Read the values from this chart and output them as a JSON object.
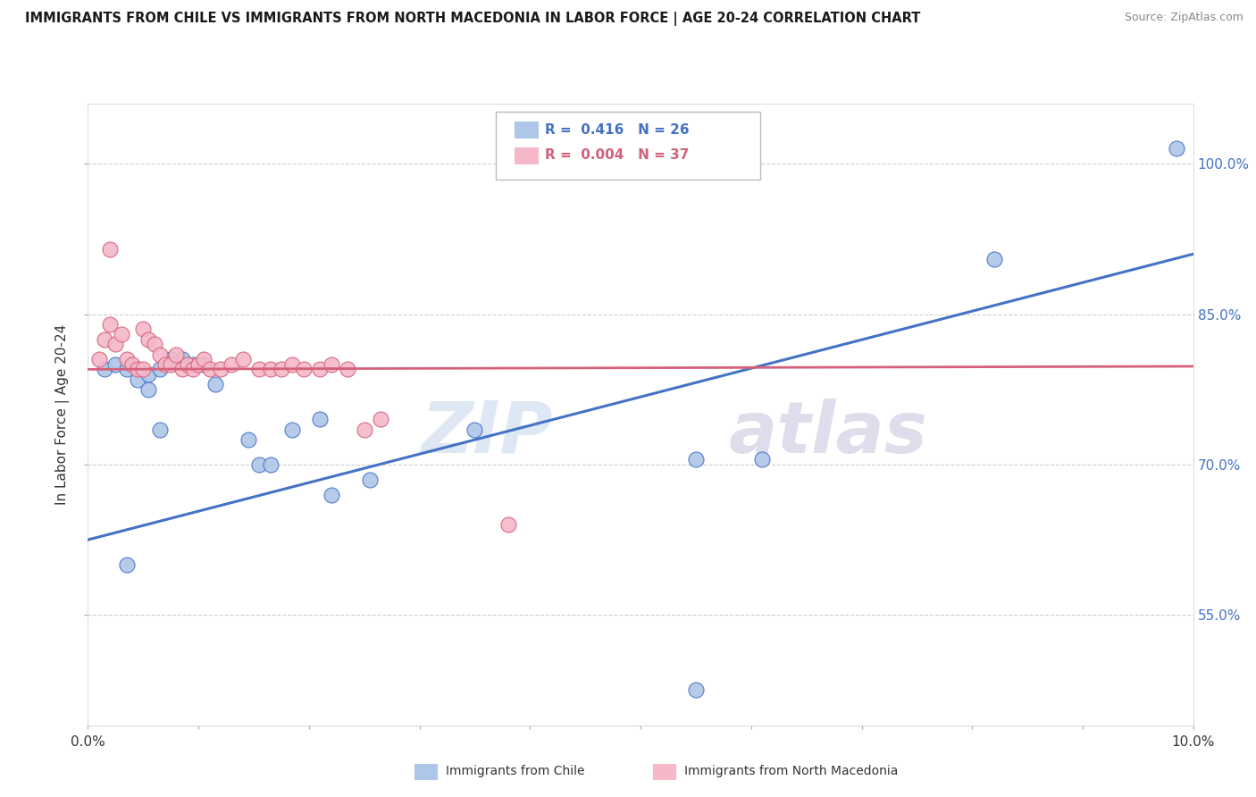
{
  "title": "IMMIGRANTS FROM CHILE VS IMMIGRANTS FROM NORTH MACEDONIA IN LABOR FORCE | AGE 20-24 CORRELATION CHART",
  "source": "Source: ZipAtlas.com",
  "ylabel": "In Labor Force | Age 20-24",
  "xlim": [
    0.0,
    10.0
  ],
  "ylim": [
    44.0,
    106.0
  ],
  "x_ticks": [
    0.0,
    1.0,
    2.0,
    3.0,
    4.0,
    5.0,
    6.0,
    7.0,
    8.0,
    9.0,
    10.0
  ],
  "y_tick_vals": [
    55.0,
    70.0,
    85.0,
    100.0
  ],
  "chile_color": "#aec6e8",
  "chile_line_color": "#4472c4",
  "macedonia_color": "#f4b8c8",
  "macedonia_line_color": "#d4607a",
  "legend_label_chile": "Immigrants from Chile",
  "legend_label_macedonia": "Immigrants from North Macedonia",
  "chile_scatter_x": [
    0.15,
    0.25,
    0.35,
    0.45,
    0.55,
    0.55,
    0.65,
    0.75,
    0.85,
    0.95,
    1.05,
    1.15,
    1.45,
    1.55,
    1.65,
    1.85,
    2.1,
    2.2,
    2.55,
    3.5,
    5.5,
    6.1,
    8.2,
    9.85,
    0.35,
    0.65
  ],
  "chile_scatter_y": [
    79.5,
    80.0,
    79.5,
    78.5,
    79.0,
    77.5,
    79.5,
    80.5,
    80.5,
    80.0,
    80.0,
    78.0,
    72.5,
    70.0,
    70.0,
    73.5,
    74.5,
    67.0,
    68.5,
    73.5,
    70.5,
    70.5,
    90.5,
    101.5,
    60.0,
    73.5
  ],
  "macedonia_scatter_x": [
    0.1,
    0.15,
    0.2,
    0.25,
    0.3,
    0.35,
    0.4,
    0.45,
    0.5,
    0.55,
    0.6,
    0.65,
    0.7,
    0.75,
    0.8,
    0.85,
    0.9,
    0.95,
    1.0,
    1.05,
    1.1,
    1.2,
    1.3,
    1.4,
    1.55,
    1.65,
    1.75,
    1.85,
    1.95,
    2.1,
    2.2,
    2.35,
    2.5,
    2.65,
    3.8,
    0.5,
    0.2
  ],
  "macedonia_scatter_y": [
    80.5,
    82.5,
    84.0,
    82.0,
    83.0,
    80.5,
    80.0,
    79.5,
    83.5,
    82.5,
    82.0,
    81.0,
    80.0,
    80.0,
    81.0,
    79.5,
    80.0,
    79.5,
    80.0,
    80.5,
    79.5,
    79.5,
    80.0,
    80.5,
    79.5,
    79.5,
    79.5,
    80.0,
    79.5,
    79.5,
    80.0,
    79.5,
    73.5,
    74.5,
    64.0,
    79.5,
    91.5
  ],
  "chile_trend_x": [
    0.0,
    10.0
  ],
  "chile_trend_y": [
    62.5,
    91.0
  ],
  "macedonia_trend_x": [
    0.0,
    10.0
  ],
  "macedonia_trend_y": [
    79.5,
    79.8
  ],
  "chile_lone_dot_x": 5.5,
  "chile_lone_dot_y": 47.5,
  "marker_size": 150,
  "background_color": "#ffffff",
  "grid_color": "#d0d0d0"
}
